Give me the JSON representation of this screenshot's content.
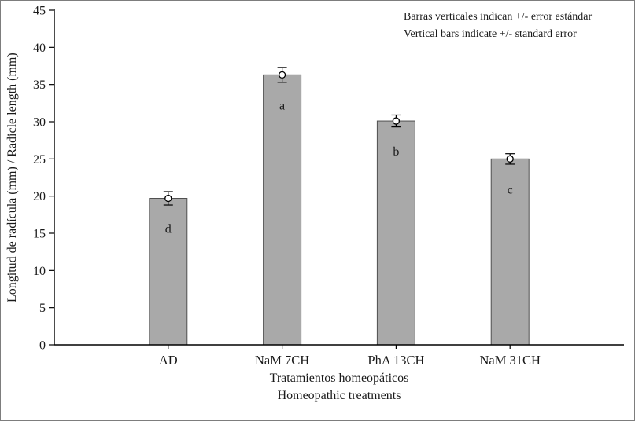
{
  "chart_data": {
    "type": "bar",
    "title": "",
    "categories": [
      "AD",
      "NaM 7CH",
      "PhA 13CH",
      "NaM 31CH"
    ],
    "values": [
      19.7,
      36.3,
      30.1,
      25.0
    ],
    "errors": [
      0.9,
      1.0,
      0.8,
      0.7
    ],
    "significance_letters": [
      "d",
      "a",
      "b",
      "c"
    ],
    "ylabel": "Longitud de radícula (mm) / Radicle length (mm)",
    "xlabel_line1": "Tratamientos homeopáticos",
    "xlabel_line2": "Homeopathic treatments",
    "annotation_line1": "Barras verticales indican +/- error estándar",
    "annotation_line2": "Vertical bars indicate +/- standard error",
    "ylim": [
      0,
      45
    ],
    "ytick_step": 5,
    "ytick_labels": [
      "0",
      "5",
      "10",
      "15",
      "20",
      "25",
      "30",
      "35",
      "40",
      "45"
    ],
    "legend_position": "none",
    "grid": "off",
    "marker": "open-circle",
    "bar_color": "#a9a9a9",
    "bar_border_color": "#4f4f4f",
    "axis_color": "#000000"
  }
}
